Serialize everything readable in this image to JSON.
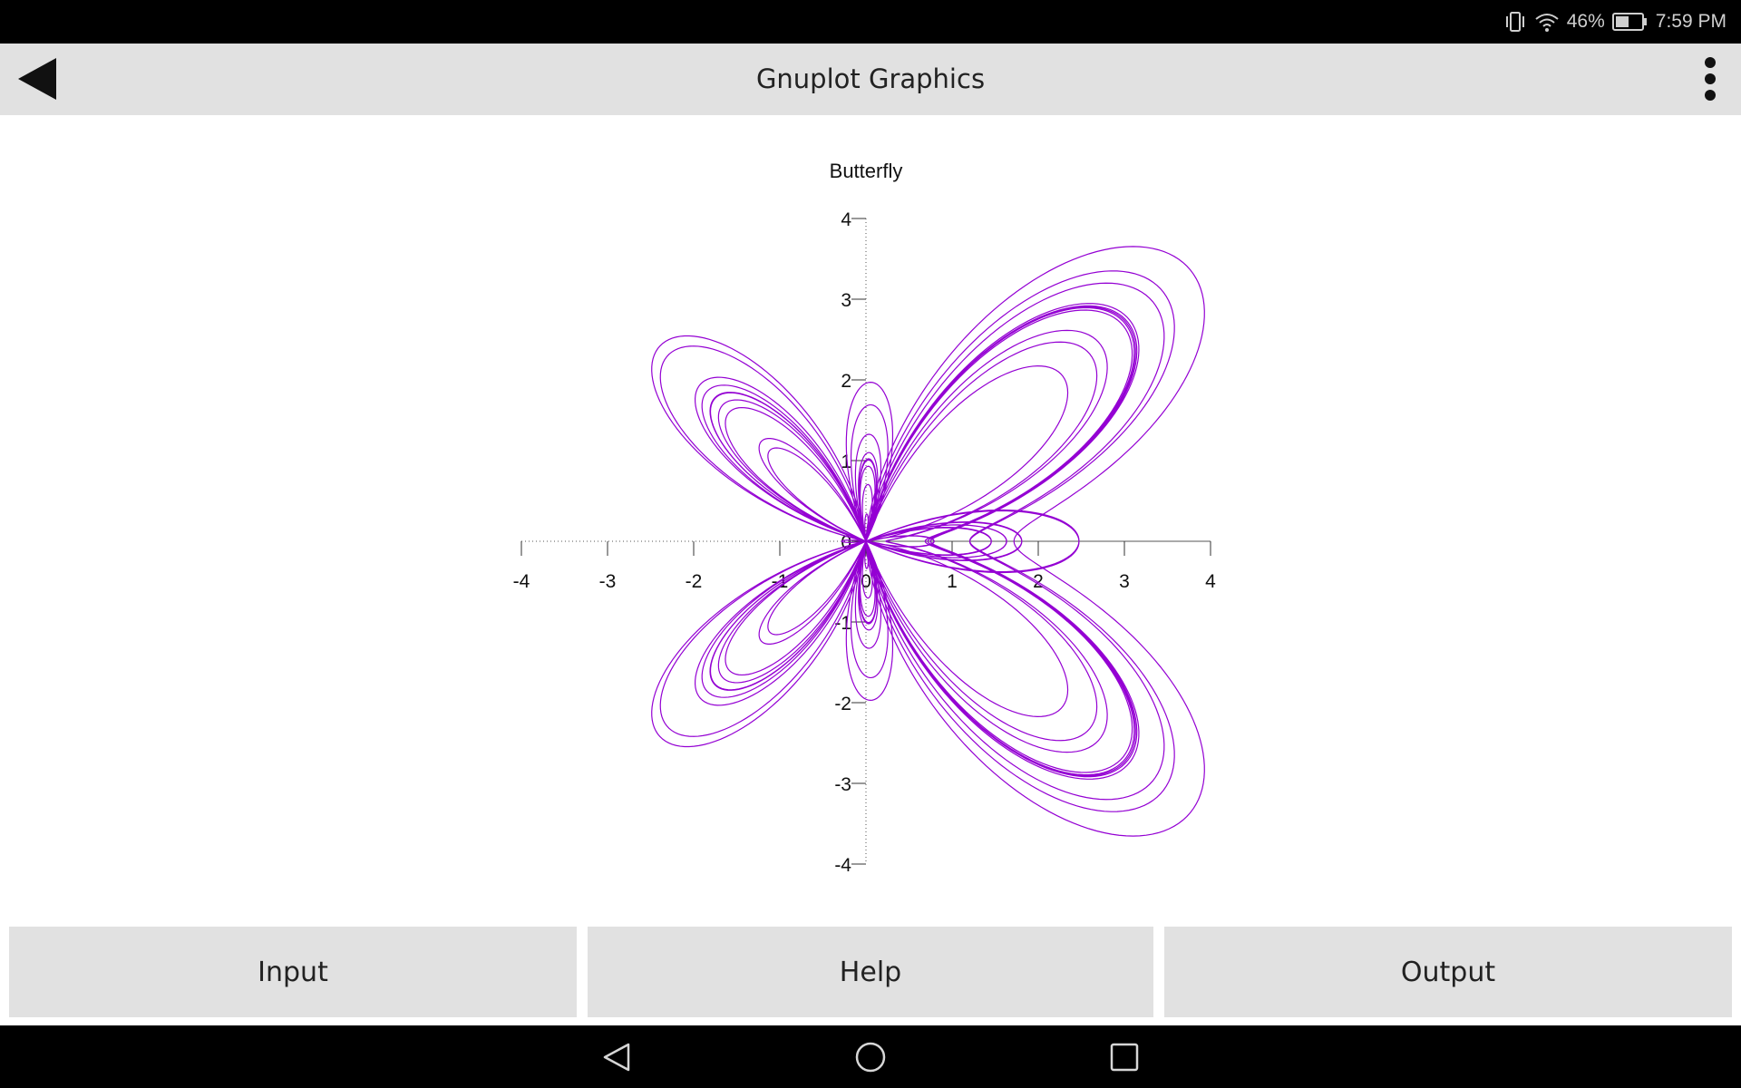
{
  "status_bar": {
    "battery": "46%",
    "time": "7:59 PM",
    "icons": [
      "vibrate-icon",
      "wifi-icon",
      "battery-icon"
    ]
  },
  "app_bar": {
    "title": "Gnuplot Graphics",
    "back_icon": "back-arrow-icon",
    "menu_icon": "more-vert-icon"
  },
  "chart_data": {
    "type": "line",
    "title": "Butterfly",
    "curve": "polar r(t) = exp(cos(t)) - 2*cos(4t) + sin(t/12)^5",
    "xlim": [
      -4,
      4
    ],
    "ylim": [
      -4,
      4
    ],
    "x_ticks": [
      -4,
      -3,
      -2,
      -1,
      0,
      1,
      2,
      3,
      4
    ],
    "y_ticks": [
      -4,
      -3,
      -2,
      -1,
      0,
      1,
      2,
      3,
      4
    ],
    "axes_through_origin": true,
    "grid": false,
    "line_color": "#9400d3"
  },
  "buttons": {
    "input": "Input",
    "help": "Help",
    "output": "Output"
  },
  "nav_bar": {
    "icons": [
      "nav-back-icon",
      "nav-home-icon",
      "nav-recents-icon"
    ]
  }
}
